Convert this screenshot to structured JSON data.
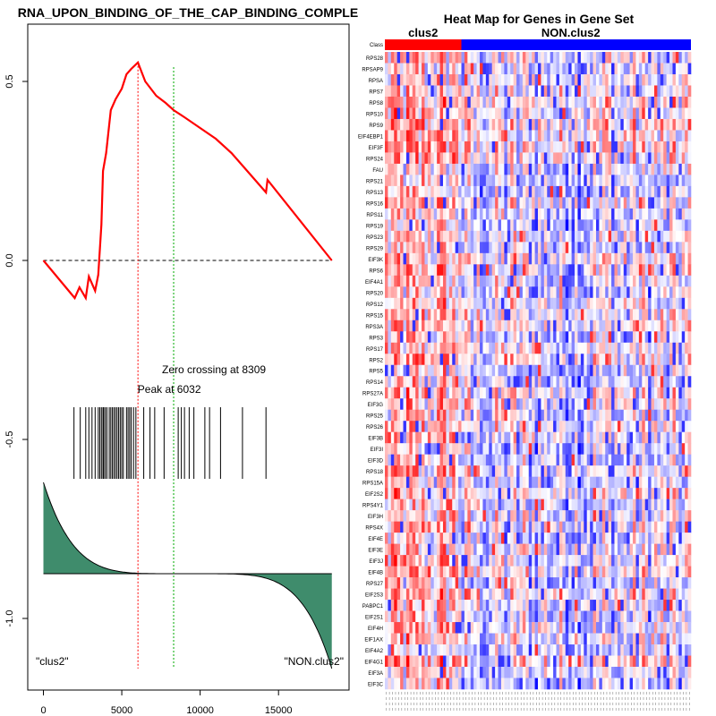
{
  "chart_data": [
    {
      "type": "line",
      "title": "RNA_UPON_BINDING_OF_THE_CAP_BINDING_COMPLE",
      "xlabel": "",
      "ylabel": "",
      "xlim": [
        -1000,
        19500
      ],
      "ylim": [
        -1.2,
        0.66
      ],
      "x_ticks": [
        0,
        5000,
        10000,
        15000
      ],
      "x_tick_labels": [
        "0",
        "5000",
        "10000",
        "15000"
      ],
      "y_ticks": [
        0.5,
        0.0,
        -0.5,
        -1.0
      ],
      "y_tick_labels": [
        "0.5",
        "0.0",
        "-0.5",
        "-1.0"
      ],
      "running_es": [
        [
          0,
          0
        ],
        [
          2000,
          -0.105
        ],
        [
          2300,
          -0.075
        ],
        [
          2700,
          -0.105
        ],
        [
          2900,
          -0.045
        ],
        [
          3300,
          -0.085
        ],
        [
          3500,
          -0.04
        ],
        [
          3700,
          0.1
        ],
        [
          3800,
          0.25
        ],
        [
          4000,
          0.3
        ],
        [
          4300,
          0.42
        ],
        [
          4600,
          0.45
        ],
        [
          5000,
          0.48
        ],
        [
          5300,
          0.52
        ],
        [
          5600,
          0.535
        ],
        [
          6032,
          0.553
        ],
        [
          6500,
          0.5
        ],
        [
          7200,
          0.46
        ],
        [
          7800,
          0.44
        ],
        [
          8300,
          0.42
        ],
        [
          9000,
          0.4
        ],
        [
          10000,
          0.37
        ],
        [
          11000,
          0.34
        ],
        [
          12000,
          0.3
        ],
        [
          13000,
          0.25
        ],
        [
          14200,
          0.19
        ],
        [
          14300,
          0.225
        ],
        [
          18400,
          0
        ]
      ],
      "hits": [
        1950,
        2350,
        2700,
        2900,
        3100,
        3300,
        3500,
        3600,
        3700,
        3800,
        3850,
        3950,
        4050,
        4200,
        4300,
        4400,
        4500,
        4600,
        4700,
        4800,
        4900,
        5000,
        5100,
        5300,
        5400,
        5500,
        5600,
        5750,
        5900,
        6400,
        6800,
        7100,
        7700,
        8600,
        8800,
        9000,
        9300,
        9600,
        10300,
        10600,
        11300,
        12700,
        14200
      ],
      "peak": {
        "x": 6032,
        "label": "Peak at 6032"
      },
      "zero_crossing": {
        "x": 8309,
        "label": "Zero crossing at 8309"
      },
      "left_label": "\"clus2\"",
      "right_label": "\"NON.clus2\"",
      "metric_range": [
        -0.62,
        -1.14
      ],
      "metric_baseline": -0.875,
      "colors": {
        "es": "#ff0000",
        "peak": "#ff0000",
        "zero": "#00aa00",
        "metric": "#3f8c6c"
      }
    },
    {
      "type": "heatmap",
      "title": "Heat Map for Genes in Gene Set",
      "class_label": "Class",
      "groups": [
        {
          "name": "clus2",
          "fraction": 0.25,
          "color": "#ff0000"
        },
        {
          "name": "NON.clus2",
          "fraction": 0.75,
          "color": "#0000ff"
        }
      ],
      "genes": [
        "RPS28",
        "RPSAP9",
        "RPSA",
        "RPS7",
        "RPS8",
        "RPS10",
        "RPS9",
        "EIF4EBP1",
        "EIF3F",
        "RPS24",
        "FAU",
        "RPS21",
        "RPS13",
        "RPS16",
        "RPS11",
        "RPS19",
        "RPS23",
        "RPS29",
        "EIF3K",
        "RPS6",
        "EIF4A1",
        "RPS20",
        "RPS12",
        "RPS15",
        "RPS3A",
        "RPS3",
        "RPS17",
        "RPS2",
        "RPS5",
        "RPS14",
        "RPS27A",
        "EIF3G",
        "RPS25",
        "RPS26",
        "EIF3B",
        "EIF3I",
        "EIF3D",
        "RPS18",
        "RPS15A",
        "EIF2S2",
        "RPS4Y1",
        "EIF3H",
        "RPS4X",
        "EIF4E",
        "EIF3E",
        "EIF3J",
        "EIF4B",
        "RPS27",
        "EIF2S3",
        "PABPC1",
        "EIF2S1",
        "EIF4H",
        "EIF1AX",
        "EIF4A2",
        "EIF4G1",
        "EIF3A",
        "EIF3C"
      ],
      "n_samples": 100,
      "colors": {
        "high": "#ff0000",
        "mid": "#ffffff",
        "low": "#0000ff"
      }
    }
  ]
}
